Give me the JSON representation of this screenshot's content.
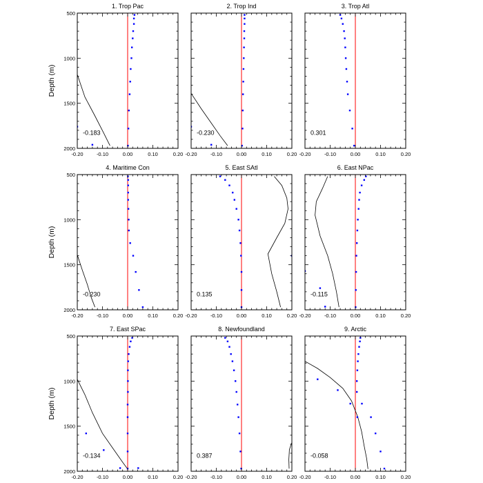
{
  "figure": {
    "ylabel": "Depth (m)"
  },
  "style": {
    "zero_line_color": "#ff0000",
    "dot_color": "#0000ff",
    "curve_color": "#000000"
  },
  "axes": {
    "xlim": [
      -0.2,
      0.2
    ],
    "ylim": [
      500,
      2000
    ],
    "y_reversed": true,
    "xticks": [
      "-0.20",
      "-0.10",
      "0.00",
      "0.10",
      "0.20"
    ],
    "xtick_values": [
      -0.2,
      -0.1,
      0.0,
      0.1,
      0.2
    ],
    "yticks": [
      "500",
      "1000",
      "1500",
      "2000"
    ],
    "ytick_values": [
      500,
      1000,
      1500,
      2000
    ]
  },
  "chart_data": [
    {
      "type": "scatter",
      "title": "1. Trop Pac",
      "annotation": "-0.183",
      "dots": [
        [
          0.027,
          520
        ],
        [
          0.025,
          560
        ],
        [
          0.025,
          620
        ],
        [
          0.022,
          700
        ],
        [
          0.02,
          780
        ],
        [
          0.017,
          880
        ],
        [
          0.015,
          1000
        ],
        [
          0.012,
          1120
        ],
        [
          0.01,
          1260
        ],
        [
          0.008,
          1400
        ],
        [
          0.005,
          1580
        ],
        [
          0.003,
          1780
        ],
        [
          0.001,
          1970
        ],
        [
          -0.2,
          1760
        ],
        [
          -0.14,
          1960
        ]
      ],
      "curve": [
        [
          -0.2,
          1180
        ],
        [
          -0.17,
          1430
        ],
        [
          -0.13,
          1640
        ],
        [
          -0.095,
          1830
        ],
        [
          -0.07,
          1970
        ]
      ]
    },
    {
      "type": "scatter",
      "title": "2. Trop Ind",
      "annotation": "-0.230",
      "dots": [
        [
          0.012,
          520
        ],
        [
          0.012,
          560
        ],
        [
          0.012,
          620
        ],
        [
          0.011,
          700
        ],
        [
          0.011,
          780
        ],
        [
          0.01,
          880
        ],
        [
          0.009,
          1000
        ],
        [
          0.008,
          1120
        ],
        [
          0.007,
          1260
        ],
        [
          0.006,
          1400
        ],
        [
          0.005,
          1580
        ],
        [
          0.004,
          1780
        ],
        [
          0.002,
          1970
        ],
        [
          -0.2,
          1760
        ],
        [
          -0.12,
          1960
        ]
      ],
      "curve": [
        [
          -0.2,
          1390
        ],
        [
          -0.16,
          1560
        ],
        [
          -0.12,
          1720
        ],
        [
          -0.085,
          1860
        ],
        [
          -0.055,
          1970
        ]
      ]
    },
    {
      "type": "scatter",
      "title": "3. Trop Atl",
      "annotation": "0.301",
      "dots": [
        [
          -0.06,
          520
        ],
        [
          -0.055,
          560
        ],
        [
          -0.05,
          620
        ],
        [
          -0.045,
          700
        ],
        [
          -0.042,
          780
        ],
        [
          -0.04,
          880
        ],
        [
          -0.038,
          1000
        ],
        [
          -0.036,
          1120
        ],
        [
          -0.033,
          1260
        ],
        [
          -0.03,
          1400
        ],
        [
          -0.022,
          1580
        ],
        [
          -0.012,
          1780
        ],
        [
          -0.005,
          1970
        ]
      ],
      "curve": []
    },
    {
      "type": "scatter",
      "title": "4. Maritime Con",
      "annotation": "-0.230",
      "dots": [
        [
          0.001,
          520
        ],
        [
          0.002,
          560
        ],
        [
          0.002,
          620
        ],
        [
          0.002,
          700
        ],
        [
          0.002,
          780
        ],
        [
          0.003,
          880
        ],
        [
          0.004,
          1000
        ],
        [
          0.005,
          1120
        ],
        [
          0.01,
          1260
        ],
        [
          0.022,
          1400
        ],
        [
          0.032,
          1580
        ],
        [
          0.045,
          1780
        ],
        [
          0.06,
          1970
        ]
      ],
      "curve": [
        [
          -0.2,
          1390
        ],
        [
          -0.18,
          1560
        ],
        [
          -0.16,
          1720
        ],
        [
          -0.145,
          1860
        ],
        [
          -0.13,
          1970
        ]
      ]
    },
    {
      "type": "scatter",
      "title": "5. East SAtl",
      "annotation": "0.135",
      "dots": [
        [
          -0.085,
          520
        ],
        [
          -0.065,
          560
        ],
        [
          -0.048,
          620
        ],
        [
          -0.035,
          700
        ],
        [
          -0.028,
          780
        ],
        [
          -0.02,
          880
        ],
        [
          -0.012,
          1000
        ],
        [
          -0.008,
          1120
        ],
        [
          -0.004,
          1260
        ],
        [
          -0.002,
          1400
        ],
        [
          0.0,
          1580
        ],
        [
          0.0,
          1780
        ],
        [
          0.0,
          1970
        ],
        [
          0.2,
          1400
        ]
      ],
      "curve": [
        [
          0.13,
          520
        ],
        [
          0.16,
          620
        ],
        [
          0.18,
          760
        ],
        [
          0.185,
          880
        ],
        [
          0.172,
          1040
        ],
        [
          0.14,
          1200
        ],
        [
          0.105,
          1380
        ],
        [
          0.12,
          1600
        ],
        [
          0.14,
          1800
        ],
        [
          0.155,
          1970
        ]
      ]
    },
    {
      "type": "scatter",
      "title": "6. East NPac",
      "annotation": "-0.115",
      "dots": [
        [
          0.042,
          520
        ],
        [
          0.035,
          560
        ],
        [
          0.025,
          620
        ],
        [
          0.018,
          700
        ],
        [
          0.015,
          780
        ],
        [
          0.013,
          880
        ],
        [
          0.01,
          1000
        ],
        [
          0.008,
          1120
        ],
        [
          0.006,
          1260
        ],
        [
          0.004,
          1400
        ],
        [
          0.003,
          1580
        ],
        [
          0.002,
          1780
        ],
        [
          0.001,
          1970
        ],
        [
          -0.2,
          1570
        ],
        [
          -0.14,
          1760
        ],
        [
          -0.12,
          1965
        ]
      ],
      "curve": [
        [
          -0.11,
          520
        ],
        [
          -0.13,
          650
        ],
        [
          -0.155,
          800
        ],
        [
          -0.16,
          950
        ],
        [
          -0.14,
          1180
        ],
        [
          -0.11,
          1400
        ],
        [
          -0.09,
          1600
        ],
        [
          -0.075,
          1800
        ],
        [
          -0.065,
          1970
        ]
      ]
    },
    {
      "type": "scatter",
      "title": "7. East SPac",
      "annotation": "-0.134",
      "dots": [
        [
          0.018,
          520
        ],
        [
          0.012,
          560
        ],
        [
          0.008,
          620
        ],
        [
          0.004,
          700
        ],
        [
          0.002,
          780
        ],
        [
          0.001,
          880
        ],
        [
          0.001,
          1000
        ],
        [
          0.001,
          1120
        ],
        [
          0.0,
          1260
        ],
        [
          0.0,
          1400
        ],
        [
          0.0,
          1580
        ],
        [
          0.0,
          1780
        ],
        [
          0.0,
          1970
        ],
        [
          -0.165,
          1580
        ],
        [
          -0.095,
          1765
        ],
        [
          -0.03,
          1965
        ],
        [
          0.042,
          1965
        ]
      ],
      "curve": [
        [
          -0.2,
          980
        ],
        [
          -0.17,
          1150
        ],
        [
          -0.14,
          1350
        ],
        [
          -0.1,
          1580
        ],
        [
          -0.055,
          1760
        ],
        [
          -0.02,
          1900
        ],
        [
          0.0,
          1975
        ]
      ]
    },
    {
      "type": "scatter",
      "title": "8. Newfoundland",
      "annotation": "0.387",
      "dots": [
        [
          -0.065,
          520
        ],
        [
          -0.055,
          560
        ],
        [
          -0.048,
          620
        ],
        [
          -0.042,
          700
        ],
        [
          -0.036,
          780
        ],
        [
          -0.03,
          880
        ],
        [
          -0.024,
          1000
        ],
        [
          -0.02,
          1120
        ],
        [
          -0.016,
          1260
        ],
        [
          -0.012,
          1400
        ],
        [
          -0.008,
          1580
        ],
        [
          -0.004,
          1780
        ],
        [
          -0.001,
          1970
        ]
      ],
      "curve": [
        [
          0.2,
          1680
        ],
        [
          0.19,
          1760
        ],
        [
          0.188,
          1870
        ],
        [
          0.189,
          1970
        ]
      ]
    },
    {
      "type": "scatter",
      "title": "9. Arctic",
      "annotation": "-0.058",
      "dots": [
        [
          0.02,
          520
        ],
        [
          0.018,
          560
        ],
        [
          0.015,
          620
        ],
        [
          0.012,
          700
        ],
        [
          0.01,
          780
        ],
        [
          0.008,
          880
        ],
        [
          -0.15,
          980
        ],
        [
          0.006,
          1000
        ],
        [
          -0.07,
          1100
        ],
        [
          0.006,
          1120
        ],
        [
          -0.02,
          1250
        ],
        [
          0.026,
          1250
        ],
        [
          0.008,
          1400
        ],
        [
          0.062,
          1400
        ],
        [
          0.08,
          1580
        ],
        [
          0.1,
          1780
        ],
        [
          0.115,
          1970
        ]
      ],
      "curve": [
        [
          -0.2,
          780
        ],
        [
          -0.15,
          860
        ],
        [
          -0.1,
          960
        ],
        [
          -0.05,
          1080
        ],
        [
          -0.015,
          1220
        ],
        [
          0.01,
          1400
        ],
        [
          0.025,
          1560
        ],
        [
          0.035,
          1720
        ],
        [
          0.045,
          1860
        ],
        [
          0.05,
          1975
        ]
      ]
    }
  ]
}
